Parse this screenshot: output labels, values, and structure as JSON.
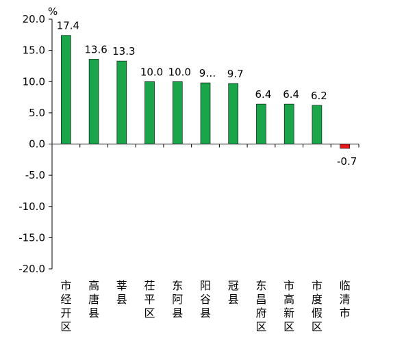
{
  "chart_data": {
    "type": "bar",
    "unit": "%",
    "ylim": [
      -20,
      20
    ],
    "yticks": [
      "20.0",
      "15.0",
      "10.0",
      "5.0",
      "0.0",
      "-5.0",
      "-10.0",
      "-15.0",
      "-20.0"
    ],
    "grid": false,
    "legend": "none",
    "categories": [
      "市经开区",
      "高唐县",
      "莘县",
      "茌平区",
      "东阿县",
      "阳谷县",
      "冠县",
      "东昌府区",
      "市高新区",
      "市度假区",
      "临清市"
    ],
    "values": [
      17.4,
      13.6,
      13.3,
      10.0,
      10.0,
      9.8,
      9.7,
      6.4,
      6.4,
      6.2,
      -0.7
    ],
    "data_labels": [
      "17.4",
      "13.6",
      "13.3",
      "10.0",
      "10.0",
      "9…",
      "9.7",
      "6.4",
      "6.4",
      "6.2",
      "-0.7"
    ],
    "colors": {
      "positive": "#1aa54b",
      "negative": "#e8191d",
      "axis": "#000000"
    }
  }
}
